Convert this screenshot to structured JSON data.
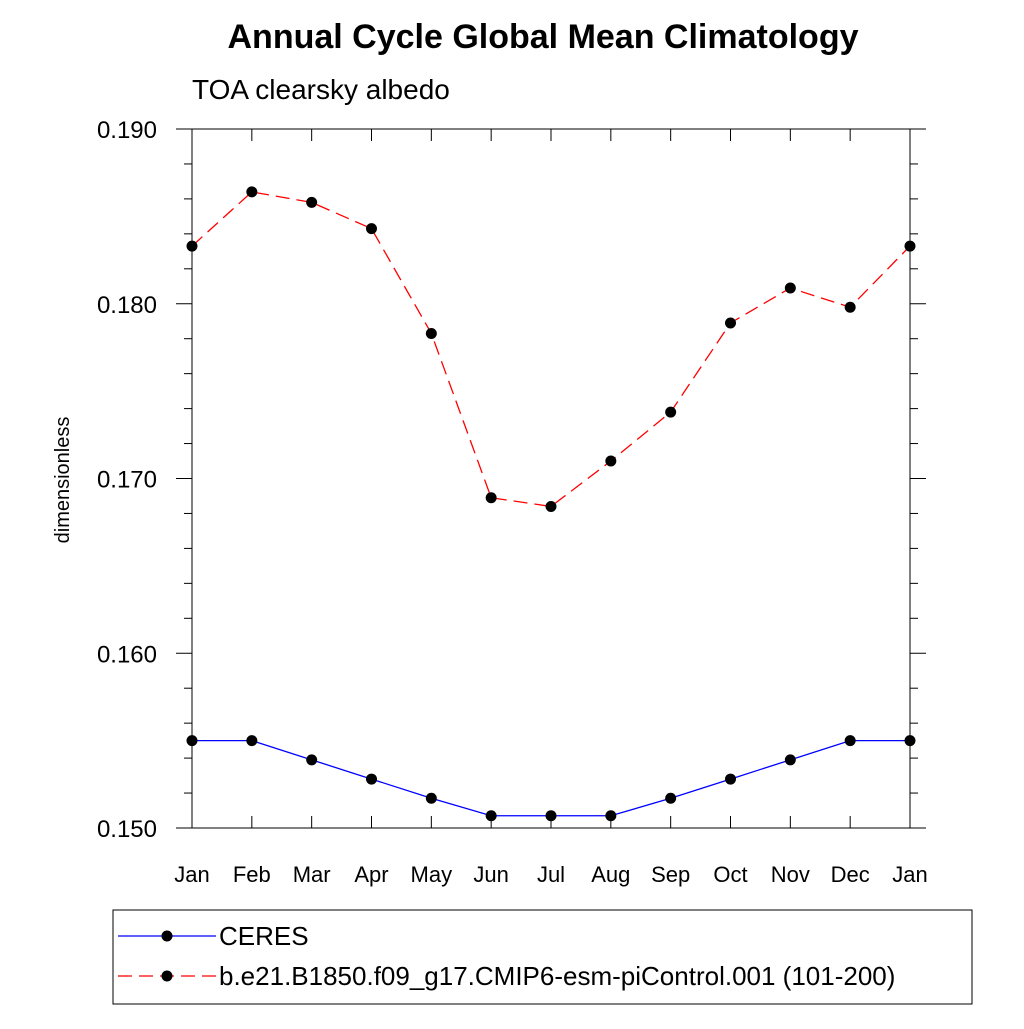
{
  "chart_data": {
    "type": "line",
    "title": "Annual Cycle Global Mean Climatology",
    "subtitle": "TOA clearsky albedo",
    "xlabel": "",
    "ylabel": "dimensionless",
    "categories": [
      "Jan",
      "Feb",
      "Mar",
      "Apr",
      "May",
      "Jun",
      "Jul",
      "Aug",
      "Sep",
      "Oct",
      "Nov",
      "Dec",
      "Jan"
    ],
    "ylim": [
      0.15,
      0.19
    ],
    "yticks": [
      "0.150",
      "0.160",
      "0.170",
      "0.180",
      "0.190"
    ],
    "y_minor_step": 0.002,
    "grid": false,
    "legend_position": "bottom",
    "series": [
      {
        "name": "CERES",
        "color": "#0000ff",
        "line_style": "solid",
        "marker": "filled-circle",
        "values": [
          0.155,
          0.155,
          0.1539,
          0.1528,
          0.1517,
          0.1507,
          0.1507,
          0.1507,
          0.1517,
          0.1528,
          0.1539,
          0.155,
          0.155
        ]
      },
      {
        "name": "b.e21.B1850.f09_g17.CMIP6-esm-piControl.001 (101-200)",
        "color": "#ff0000",
        "line_style": "dashed",
        "marker": "filled-circle",
        "values": [
          0.1833,
          0.1864,
          0.1858,
          0.1843,
          0.1783,
          0.1689,
          0.1684,
          0.171,
          0.1738,
          0.1789,
          0.1809,
          0.1798,
          0.1833
        ]
      }
    ]
  }
}
